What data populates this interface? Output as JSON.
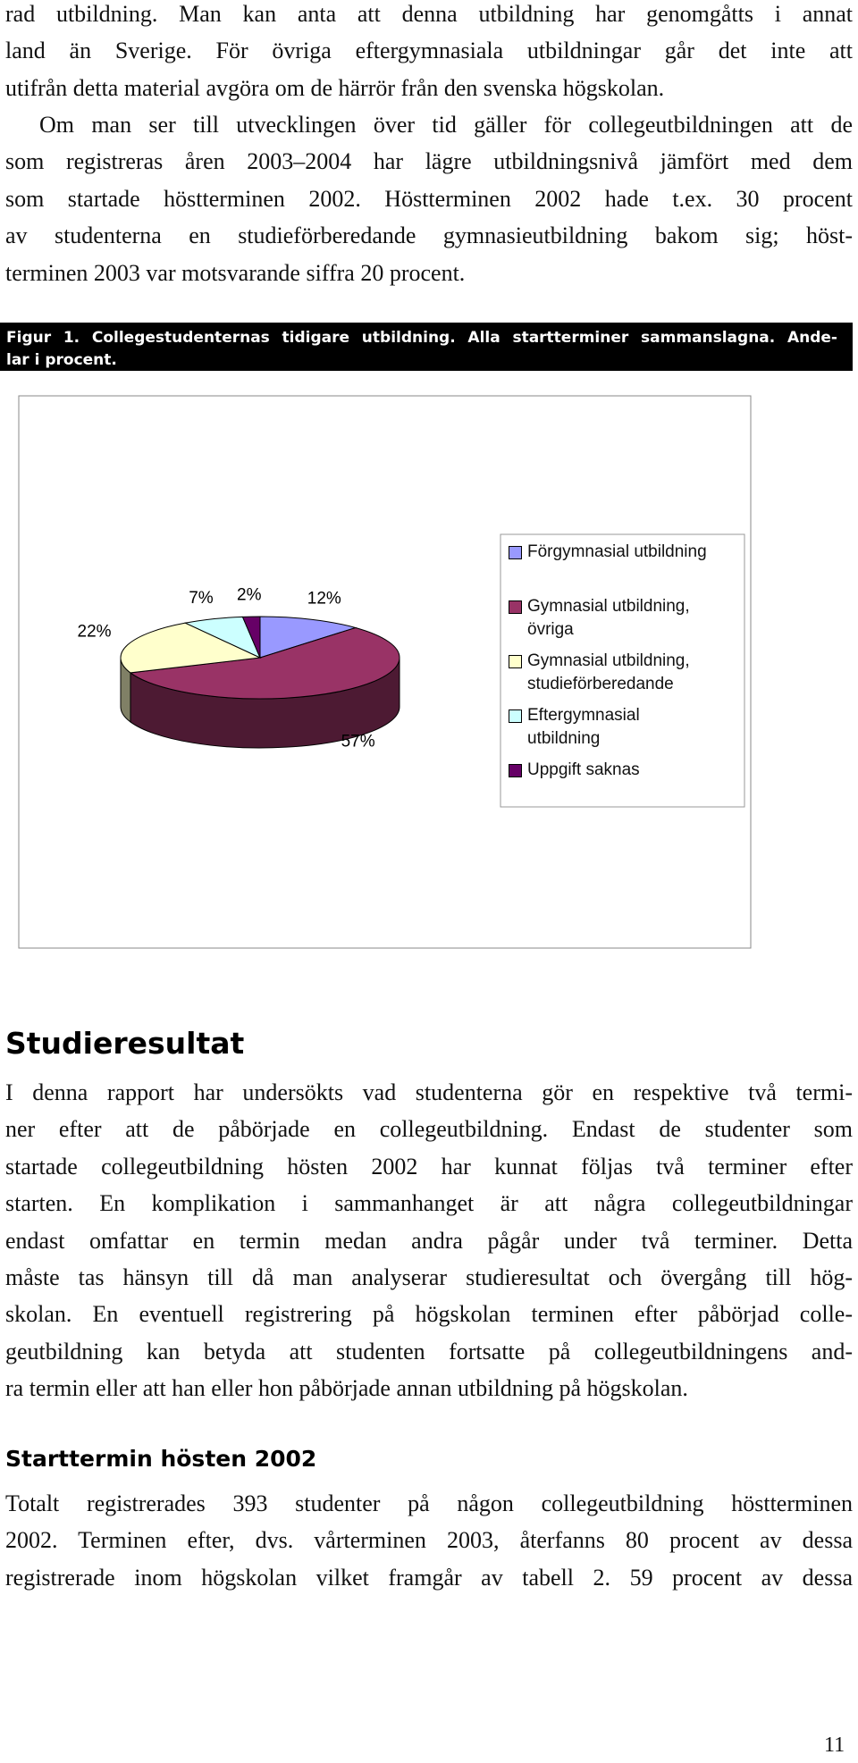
{
  "document": {
    "paragraphs": [
      [
        "rad utbildning. Man kan anta att denna utbildning har genomgåtts i annat",
        "land än Sverige. För övriga eftergymnasiala utbildningar går det inte att",
        "utifrån detta material avgöra om de härrör från den svenska högskolan."
      ],
      [
        "Om man ser till utvecklingen över tid gäller för collegeutbildningen att de",
        "som registreras åren 2003–2004 har lägre utbildningsnivå jämfört med dem",
        "som startade höstterminen 2002. Höstterminen 2002 hade t.ex. 30 procent",
        "av studenterna en studieförberedande gymnasieutbildning bakom sig; höst-",
        "terminen 2003 var motsvarande siffra 20 procent."
      ],
      [
        "I denna rapport har undersökts vad studenterna gör en respektive två termi-",
        "ner efter att de påbörjade en collegeutbildning. Endast de studenter som",
        "startade collegeutbildning hösten 2002 har kunnat följas två terminer efter",
        "starten. En komplikation i sammanhanget är att några collegeutbildningar",
        "endast omfattar en termin medan andra pågår under två terminer. Detta",
        "måste tas hänsyn till då man analyserar studieresultat och övergång till hög-",
        "skolan. En eventuell registrering på högskolan terminen efter påbörjad colle-",
        "geutbildning kan betyda att studenten fortsatte på collegeutbildningens and-",
        "ra termin eller att han eller hon påbörjade annan utbildning på högskolan."
      ],
      [
        "Totalt registrerades 393 studenter på någon collegeutbildning höstterminen",
        "2002. Terminen efter, dvs. vårterminen 2003, återfanns 80 procent av dessa",
        "registrerade inom högskolan vilket framgår av tabell 2. 59 procent av dessa"
      ]
    ],
    "caption": [
      "Figur 1. Collegestudenternas tidigare utbildning. Alla startterminer sammanslagna. Ande-",
      "lar i procent."
    ],
    "headings": [
      "Studieresultat",
      "Starttermin hösten 2002"
    ],
    "page_number": "11"
  },
  "chart_data": {
    "type": "pie3d",
    "categories": [
      "Förgymnasial utbildning",
      "Gymnasial utbildning, övriga",
      "Gymnasial utbildning, studieförberedande",
      "Eftergymnasial utbildning",
      "Uppgift saknas"
    ],
    "values": [
      12,
      57,
      22,
      7,
      2
    ],
    "value_labels": [
      "12%",
      "57%",
      "22%",
      "7%",
      "2%"
    ],
    "colors": [
      "#9999ff",
      "#993366",
      "#ffffcc",
      "#ccffff",
      "#660066"
    ],
    "legend": "right"
  }
}
